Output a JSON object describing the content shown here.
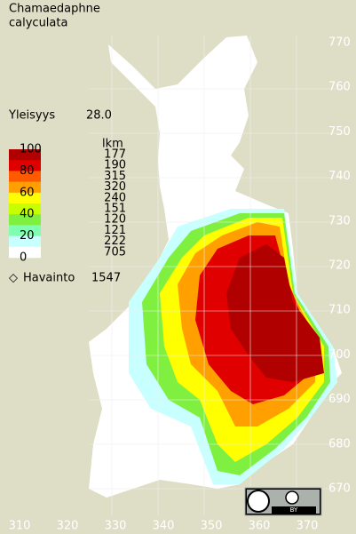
{
  "title": [
    "Chamaedaphne",
    "calyculata"
  ],
  "frequency": {
    "label": "Yleisyys",
    "value": "28.0"
  },
  "legend": {
    "scale_labels": [
      100,
      80,
      60,
      40,
      20,
      0
    ],
    "count_header": "lkm",
    "counts": [
      177,
      190,
      315,
      320,
      240,
      151,
      120,
      121,
      222,
      705
    ],
    "colors": [
      "#b00000",
      "#e00000",
      "#ff5a00",
      "#ffa000",
      "#ffff00",
      "#c8ff00",
      "#80f040",
      "#80ffb0",
      "#c8ffff",
      "#ffffff"
    ]
  },
  "observations": {
    "label": "Havainto",
    "count": 1547
  },
  "map": {
    "y_labels": [
      770,
      760,
      750,
      740,
      730,
      720,
      710,
      700,
      690,
      680,
      670
    ],
    "x_labels": [
      310,
      320,
      330,
      340,
      350,
      360,
      370
    ]
  },
  "badge": {
    "text": "BY"
  }
}
